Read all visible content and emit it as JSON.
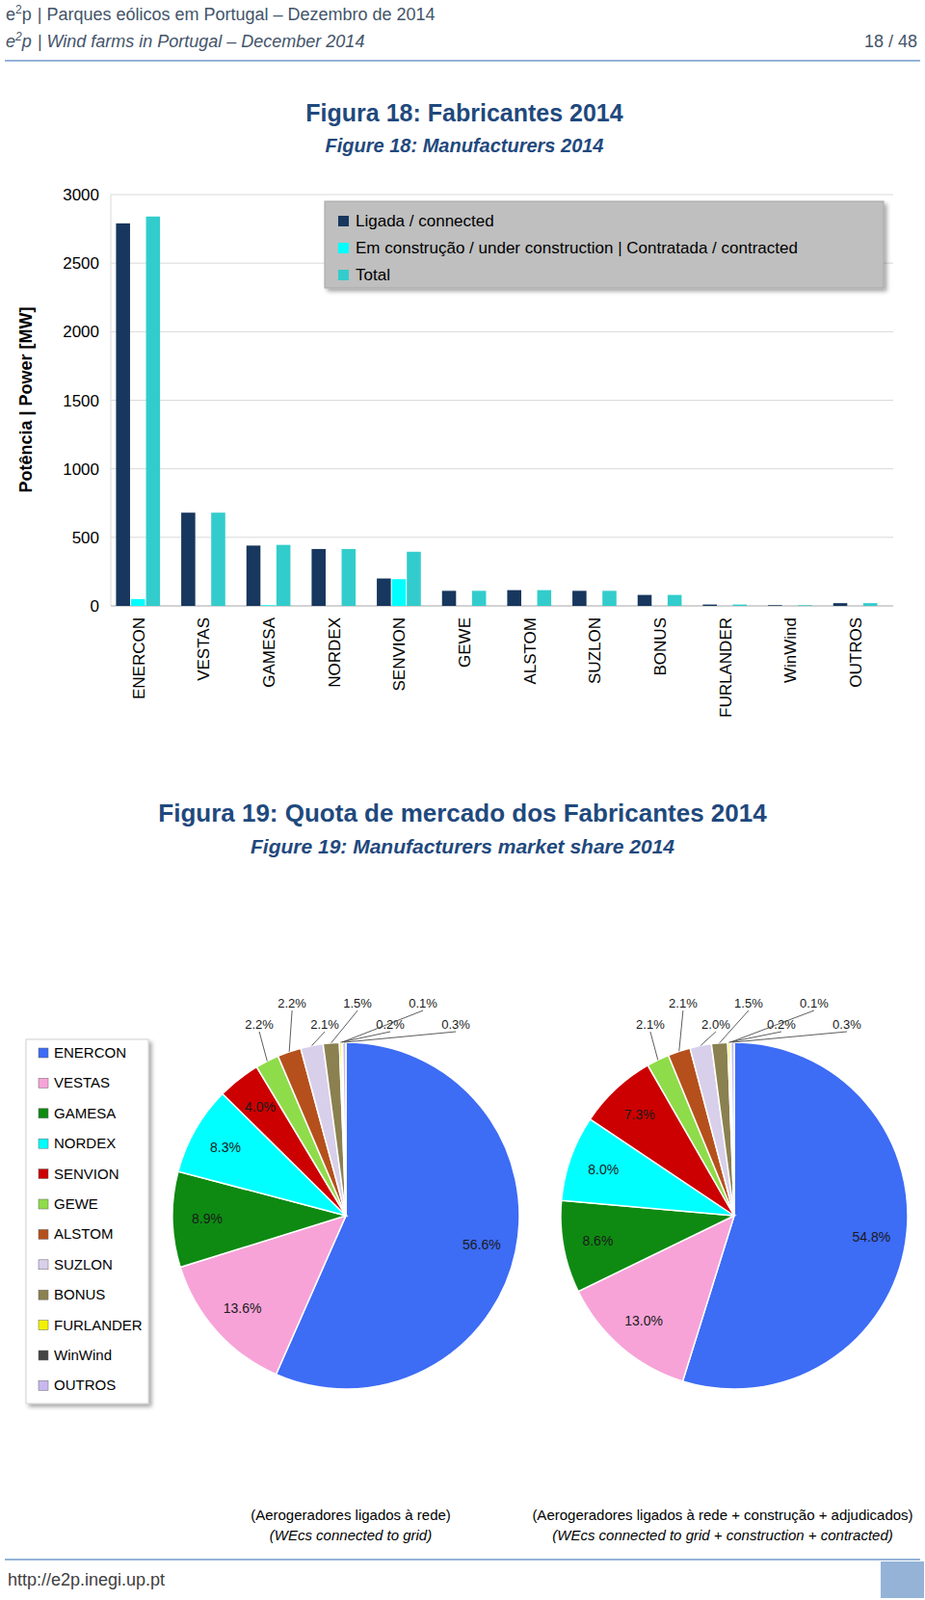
{
  "header": {
    "logo": [
      "e",
      "2",
      "p"
    ],
    "line1": "| Parques eólicos em Portugal – Dezembro de 2014",
    "line2": "| Wind farms in Portugal – December 2014",
    "page": "18 / 48"
  },
  "footer": {
    "url": "http://e2p.inegi.up.pt"
  },
  "chart_data": [
    {
      "type": "bar",
      "title": "Figura 18: Fabricantes 2014",
      "subtitle": "Figure 18: Manufacturers 2014",
      "y_label": "Potência | Power [MW]",
      "categories": [
        "ENERCON",
        "VESTAS",
        "GAMESA",
        "NORDEX",
        "SENVION",
        "GEWE",
        "ALSTOM",
        "SUZLON",
        "BONUS",
        "FURLANDER",
        "WinWind",
        "OUTROS"
      ],
      "series": [
        {
          "name": "Ligada / connected",
          "color": "#17375e",
          "values": [
            2790,
            680,
            440,
            415,
            200,
            110,
            115,
            110,
            80,
            10,
            5,
            20
          ]
        },
        {
          "name": "Em construção / under construction | Contratada / contracted",
          "color": "#00ffff",
          "values": [
            50,
            0,
            5,
            0,
            195,
            0,
            0,
            0,
            0,
            0,
            0,
            0
          ]
        },
        {
          "name": "Total",
          "color": "#33cccc",
          "values": [
            2840,
            680,
            445,
            415,
            395,
            110,
            115,
            110,
            80,
            10,
            5,
            20
          ]
        }
      ],
      "ylim": [
        0,
        3000
      ],
      "yticks": [
        0,
        500,
        1000,
        1500,
        2000,
        2500,
        3000
      ],
      "grid": true,
      "legend": "top-right"
    },
    {
      "type": "pie",
      "title": "Figura 19: Quota de mercado dos Fabricantes 2014",
      "subtitle": "Figure 19: Manufacturers market share 2014",
      "categories": [
        "ENERCON",
        "VESTAS",
        "GAMESA",
        "NORDEX",
        "SENVION",
        "GEWE",
        "ALSTOM",
        "SUZLON",
        "BONUS",
        "FURLANDER",
        "WinWind",
        "OUTROS"
      ],
      "colors": [
        "#3d6cf5",
        "#f7a3d8",
        "#0e8a12",
        "#00ffff",
        "#cc0000",
        "#8fdc4a",
        "#b5501c",
        "#d8cfea",
        "#8a8050",
        "#f2f200",
        "#444444",
        "#c9b8f0"
      ],
      "legend": "left",
      "data_labels": true,
      "series": [
        {
          "caption": [
            "(Aerogeradores ligados à rede)",
            "(WEcs connected to grid)"
          ],
          "values": [
            56.6,
            13.6,
            8.9,
            8.3,
            4.0,
            2.2,
            2.2,
            2.1,
            1.5,
            0.2,
            0.1,
            0.3
          ],
          "value_labels": [
            "56.6%",
            "13.6%",
            "8.9%",
            "8.3%",
            "4.0%",
            "2.2%",
            "2.2%",
            "2.1%",
            "1.5%",
            "0.2%",
            "0.1%",
            "0.3%"
          ]
        },
        {
          "caption": [
            "(Aerogeradores ligados à rede + construção + adjudicados)",
            "(WEcs connected to grid + construction + contracted)"
          ],
          "values": [
            54.8,
            13.0,
            8.6,
            8.0,
            7.3,
            2.1,
            2.1,
            2.0,
            1.5,
            0.2,
            0.1,
            0.3
          ],
          "value_labels": [
            "54.8%",
            "13.0%",
            "8.6%",
            "8.0%",
            "7.3%",
            "2.1%",
            "2.1%",
            "2.0%",
            "1.5%",
            "0.2%",
            "0.1%",
            "0.3%"
          ]
        }
      ]
    }
  ]
}
